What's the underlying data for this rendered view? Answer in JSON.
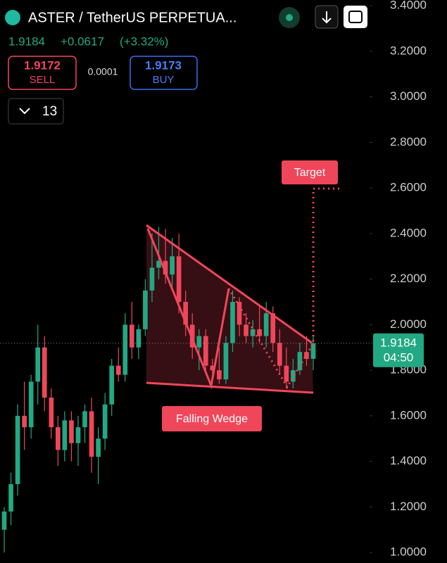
{
  "header": {
    "symbol": "ASTER / TetherUS PERPETUA...",
    "price": "1.9184",
    "change": "+0.0617",
    "change_pct": "(+3.32%)",
    "sell_price": "1.9172",
    "sell_label": "SELL",
    "spread": "0.0001",
    "buy_price": "1.9173",
    "buy_label": "BUY",
    "interval": "13"
  },
  "price_tag": {
    "price": "1.9184",
    "countdown": "04:50"
  },
  "chart_data": {
    "type": "candlestick",
    "up_color": "#22a883",
    "down_color": "#f0465a",
    "open": [
      1.1,
      1.18,
      1.3,
      1.6,
      1.55,
      1.75,
      1.9,
      1.68,
      1.55,
      1.45,
      1.58,
      1.48,
      1.55,
      1.62,
      1.42,
      1.5,
      1.65,
      1.82,
      1.78,
      2.0,
      1.9,
      1.98,
      2.15,
      2.25,
      2.28,
      2.22,
      2.3,
      2.1,
      2.0,
      1.9,
      1.95,
      1.82,
      1.8,
      1.76,
      1.92,
      2.1,
      2.0,
      1.95,
      1.98,
      1.95,
      2.05,
      1.92,
      1.82,
      1.75,
      1.8,
      1.88,
      1.85
    ],
    "high": [
      1.2,
      1.35,
      1.65,
      1.75,
      1.78,
      2.0,
      1.95,
      1.72,
      1.6,
      1.62,
      1.62,
      1.6,
      1.65,
      1.68,
      1.55,
      1.7,
      1.85,
      1.9,
      2.05,
      2.1,
      2.0,
      2.2,
      2.4,
      2.43,
      2.42,
      2.38,
      2.4,
      2.15,
      2.05,
      1.98,
      1.98,
      1.85,
      1.9,
      1.95,
      2.15,
      2.12,
      2.05,
      2.02,
      2.08,
      2.1,
      2.08,
      1.98,
      1.9,
      1.85,
      1.92,
      1.95,
      1.95
    ],
    "low": [
      1.0,
      1.12,
      1.25,
      1.45,
      1.5,
      1.65,
      1.62,
      1.5,
      1.38,
      1.4,
      1.4,
      1.38,
      1.48,
      1.35,
      1.3,
      1.45,
      1.6,
      1.75,
      1.75,
      1.85,
      1.85,
      1.95,
      2.1,
      2.2,
      2.18,
      2.15,
      2.05,
      1.95,
      1.85,
      1.8,
      1.78,
      1.75,
      1.74,
      1.74,
      1.88,
      1.95,
      1.92,
      1.9,
      1.92,
      1.9,
      1.88,
      1.78,
      1.72,
      1.72,
      1.78,
      1.82,
      1.8
    ],
    "close": [
      1.18,
      1.3,
      1.6,
      1.55,
      1.75,
      1.9,
      1.68,
      1.55,
      1.45,
      1.58,
      1.48,
      1.55,
      1.62,
      1.42,
      1.5,
      1.65,
      1.82,
      1.78,
      2.0,
      1.9,
      1.98,
      2.15,
      2.25,
      2.28,
      2.22,
      2.3,
      2.1,
      2.0,
      1.9,
      1.95,
      1.82,
      1.8,
      1.76,
      1.92,
      2.1,
      2.0,
      1.95,
      1.98,
      1.95,
      2.05,
      1.92,
      1.82,
      1.75,
      1.8,
      1.88,
      1.85,
      1.9184
    ],
    "ylim": [
      0.954,
      3.425
    ],
    "yticks": [
      {
        "value": 1.0,
        "label": "1.0000"
      },
      {
        "value": 1.2,
        "label": "1.2000"
      },
      {
        "value": 1.4,
        "label": "1.4000"
      },
      {
        "value": 1.6,
        "label": "1.6000"
      },
      {
        "value": 1.8,
        "label": "1.8000"
      },
      {
        "value": 2.0,
        "label": "2.0000"
      },
      {
        "value": 2.2,
        "label": "2.2000"
      },
      {
        "value": 2.4,
        "label": "2.4000"
      },
      {
        "value": 2.6,
        "label": "2.6000"
      },
      {
        "value": 2.8,
        "label": "2.8000"
      },
      {
        "value": 3.0,
        "label": "3.0000"
      },
      {
        "value": 3.2,
        "label": "3.2000"
      },
      {
        "value": 3.4,
        "label": "3.4000"
      }
    ],
    "annotations": {
      "target": "Target",
      "pattern": "Falling Wedge"
    }
  }
}
